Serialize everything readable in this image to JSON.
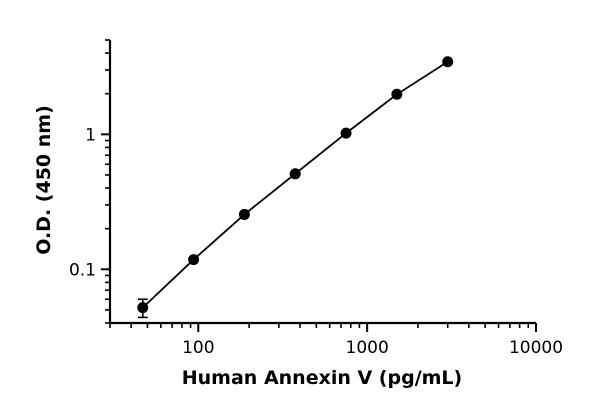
{
  "chart_data": {
    "type": "line",
    "xlabel": "Human Annexin V (pg/mL)",
    "ylabel": "O.D. (450 nm)",
    "xscale": "log",
    "yscale": "log",
    "xlim": [
      30,
      10000
    ],
    "ylim": [
      0.04,
      5
    ],
    "x_ticks": [
      100,
      1000,
      10000
    ],
    "x_tick_labels": [
      "100",
      "1000",
      "10000"
    ],
    "y_ticks": [
      0.1,
      1
    ],
    "y_tick_labels": [
      "0.1",
      "1"
    ],
    "grid": false,
    "legend": "none",
    "series": [
      {
        "x": [
          46.9,
          93.8,
          187.5,
          375,
          750,
          1500,
          3000
        ],
        "y": [
          0.052,
          0.118,
          0.255,
          0.51,
          1.02,
          1.98,
          3.45
        ],
        "y_error": [
          0.008,
          0,
          0,
          0,
          0,
          0,
          0
        ]
      }
    ]
  }
}
